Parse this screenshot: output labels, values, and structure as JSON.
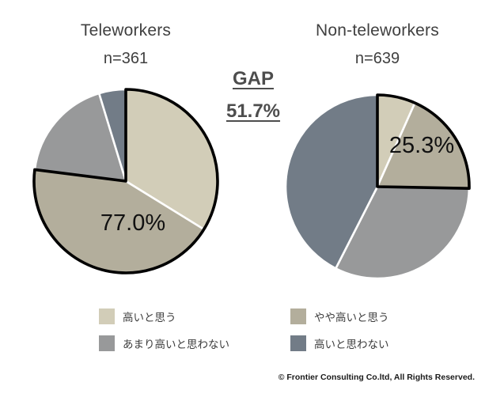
{
  "slide": {
    "background": "#ffffff",
    "copyright": "© Frontier Consulting Co.ltd, All Rights Reserved."
  },
  "gap": {
    "label": "GAP",
    "value": "51.7%"
  },
  "legend": {
    "position": "bottom-shared",
    "items": [
      {
        "label": "高いと思う",
        "color": "#d2cdb8"
      },
      {
        "label": "やや高いと思う",
        "color": "#b3ae9c"
      },
      {
        "label": "あまり高いと思わない",
        "color": "#98999a"
      },
      {
        "label": "高いと思わない",
        "color": "#727c87"
      }
    ]
  },
  "chart_data": [
    {
      "type": "pie",
      "title": "Teleworkers",
      "subtitle": "n=361",
      "categories": [
        "高いと思う",
        "やや高いと思う",
        "あまり高いと思わない",
        "高いと思わない"
      ],
      "values": [
        33.8,
        43.2,
        18.3,
        4.7
      ],
      "colors": [
        "#d2cdb8",
        "#b3ae9c",
        "#98999a",
        "#727c87"
      ],
      "data_label": "77.0%",
      "highlight": {
        "segments": [
          0,
          1
        ],
        "total": 77.0,
        "outline": "#000000"
      },
      "start_angle": 0,
      "direction": "clockwise",
      "separator_color": "#ffffff"
    },
    {
      "type": "pie",
      "title": "Non-teleworkers",
      "subtitle": "n=639",
      "categories": [
        "高いと思う",
        "やや高いと思う",
        "あまり高いと思わない",
        "高いと思わない"
      ],
      "values": [
        6.7,
        18.6,
        32.2,
        42.5
      ],
      "colors": [
        "#d2cdb8",
        "#b3ae9c",
        "#98999a",
        "#727c87"
      ],
      "data_label": "25.3%",
      "highlight": {
        "segments": [
          0,
          1
        ],
        "total": 25.3,
        "outline": "#000000"
      },
      "start_angle": 0,
      "direction": "clockwise",
      "separator_color": "#ffffff"
    }
  ]
}
